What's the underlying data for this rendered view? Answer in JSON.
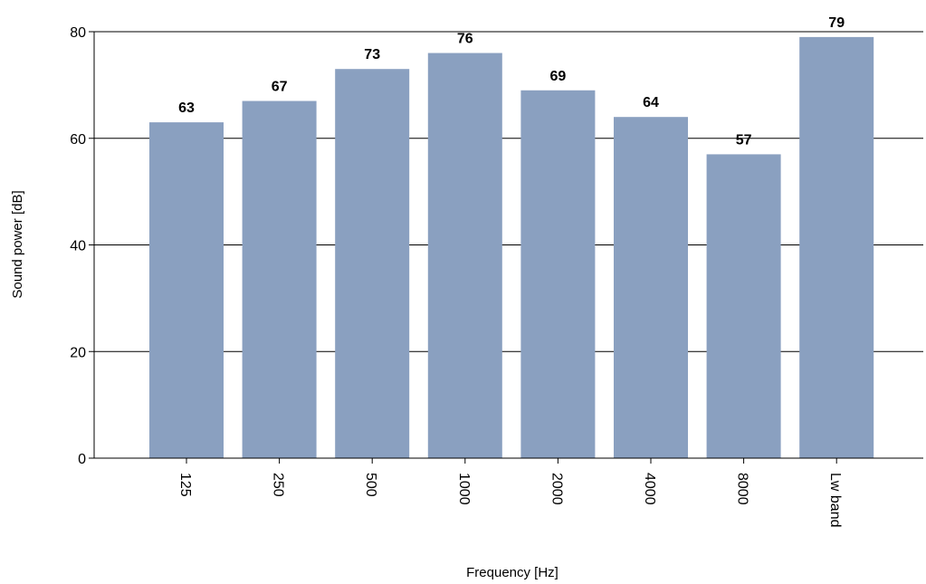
{
  "chart_data": {
    "type": "bar",
    "categories": [
      "125",
      "250",
      "500",
      "1000",
      "2000",
      "4000",
      "8000",
      "Lw band"
    ],
    "values": [
      63,
      67,
      73,
      76,
      69,
      64,
      57,
      79
    ],
    "title": "",
    "xlabel": "Frequency [Hz]",
    "ylabel": "Sound power [dB]",
    "ylim": [
      0,
      80
    ],
    "yticks": [
      0,
      20,
      40,
      60,
      80
    ],
    "grid": true,
    "legend": "none",
    "colors": {
      "bar": "#8aa0c0",
      "grid": "#000000",
      "text": "#000000"
    }
  }
}
